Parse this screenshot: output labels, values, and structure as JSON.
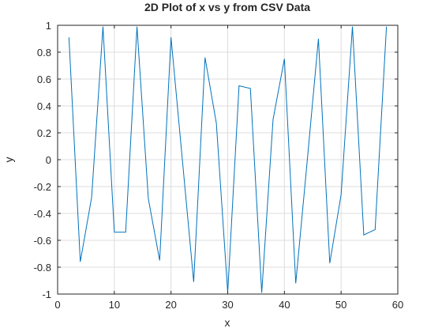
{
  "chart_data": {
    "type": "line",
    "title": "2D Plot of x vs y from CSV Data",
    "xlabel": "x",
    "ylabel": "y",
    "xlim": [
      0,
      60
    ],
    "ylim": [
      -1,
      1
    ],
    "xticks": [
      0,
      10,
      20,
      30,
      40,
      50,
      60
    ],
    "yticks": [
      -1,
      -0.8,
      -0.6,
      -0.4,
      -0.2,
      0,
      0.2,
      0.4,
      0.6,
      0.8,
      1
    ],
    "xtick_labels": [
      "0",
      "10",
      "20",
      "30",
      "40",
      "50",
      "60"
    ],
    "ytick_labels": [
      "-1",
      "-0.8",
      "-0.6",
      "-0.4",
      "-0.2",
      "0",
      "0.2",
      "0.4",
      "0.6",
      "0.8",
      "1"
    ],
    "grid": true,
    "box": true,
    "series": [
      {
        "color": "#0072BD",
        "x": [
          2,
          4,
          6,
          8,
          10,
          12,
          14,
          16,
          18,
          20,
          22,
          24,
          26,
          28,
          30,
          32,
          34,
          36,
          38,
          40,
          42,
          44,
          46,
          48,
          50,
          52,
          54,
          56,
          58
        ],
        "y": [
          0.91,
          -0.76,
          -0.28,
          0.99,
          -0.54,
          -0.54,
          0.99,
          -0.29,
          -0.75,
          0.91,
          0.0,
          -0.91,
          0.76,
          0.27,
          -0.99,
          0.55,
          0.53,
          -0.99,
          0.3,
          0.75,
          -0.92,
          -0.02,
          0.9,
          -0.77,
          -0.26,
          0.99,
          -0.56,
          -0.52,
          0.99
        ]
      }
    ]
  }
}
